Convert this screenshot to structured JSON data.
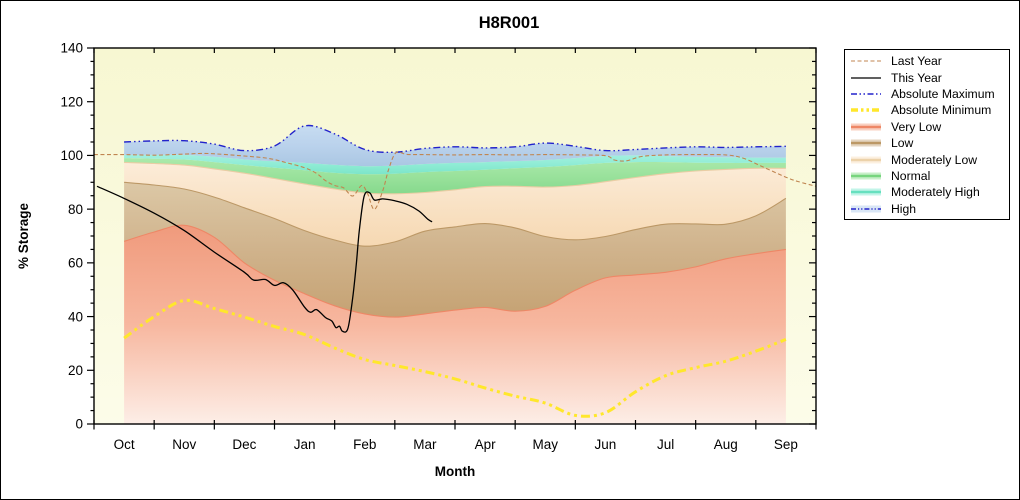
{
  "title_bar": {
    "note": "plain chart window, white background, black frame"
  },
  "chart_data": {
    "type": "area+line",
    "title": "H8R001",
    "xlabel": "Month",
    "ylabel": "% Storage",
    "x_categories": [
      "Oct",
      "Nov",
      "Dec",
      "Jan",
      "Feb",
      "Mar",
      "Apr",
      "May",
      "Jun",
      "Jul",
      "Aug",
      "Sep"
    ],
    "ylim": [
      0,
      140
    ],
    "y_major_step": 20,
    "y_minor_step": 5,
    "grid": "off",
    "legend_position": "outside-right",
    "plot_background": [
      "#f7f7d2",
      "#fcfce9"
    ],
    "sampling_note": "band and min/max series sampled at half-month steps, index 0 = mid-Oct through index 11 = mid-Sep; line series are [month_index,value] pairs, -0.5 = Oct 1, 11.5 = Sep 30",
    "bands": [
      {
        "name": "Very Low",
        "grad": [
          "#f09a7c",
          "#f7b79f",
          "#fdeee7"
        ],
        "edge_line": "#ee8766",
        "top": [
          68,
          71.5,
          74,
          69.5,
          60,
          53.5,
          48.5,
          44,
          41,
          39.8,
          41,
          42.4,
          43.4,
          42,
          43.8,
          49.8,
          54.4,
          55.5,
          56.5,
          58.5,
          61.5,
          63.4,
          65
        ]
      },
      {
        "name": "Low",
        "grad": [
          "#dcc8a6",
          "#d0b38c",
          "#c5a273"
        ],
        "edge_line": "#bc9866",
        "top": [
          90,
          89,
          87.5,
          84.5,
          80.5,
          76.5,
          72,
          68.5,
          66.2,
          67.8,
          71.8,
          73.4,
          74.6,
          73,
          69.8,
          68.6,
          69.8,
          72.4,
          74.4,
          74.5,
          74.4,
          77.5,
          84
        ]
      },
      {
        "name": "Moderately Low",
        "grad": [
          "#fcecd9",
          "#f9e2c5",
          "#f6d8b2"
        ],
        "edge_line": "#e9cda4",
        "top": [
          97.4,
          97,
          96.4,
          95,
          93.4,
          91.4,
          89.4,
          87.5,
          86,
          85.7,
          86.2,
          87.2,
          88.4,
          88.5,
          88.2,
          88.8,
          90.2,
          91.8,
          93.2,
          94.2,
          94.8,
          95.2,
          95.2
        ]
      },
      {
        "name": "Normal",
        "grad": [
          "#ace9ab",
          "#9ae29c",
          "#86d98d"
        ],
        "edge_line": null,
        "top": [
          99,
          98.8,
          98.5,
          97.5,
          96.4,
          95.4,
          94.5,
          93.5,
          93,
          93.2,
          93.8,
          94.2,
          94.7,
          95.2,
          95.7,
          96.4,
          97.2,
          97.5,
          97.5,
          97.3,
          97.2,
          97.2,
          97.2
        ]
      },
      {
        "name": "Moderately High",
        "grad": [
          "#a2f0e0",
          "#8fecd5",
          "#7ce5c9"
        ],
        "edge_line": null,
        "top": [
          100.2,
          100.2,
          100.2,
          99.5,
          98.5,
          97.8,
          97.2,
          96.5,
          96,
          96.2,
          96.8,
          97.2,
          97.5,
          97.9,
          98.3,
          99,
          99.8,
          100,
          99.8,
          99.5,
          99.3,
          99.2,
          99.2
        ]
      },
      {
        "name": "High",
        "grad": [
          "#c7dcf1",
          "#bad2ec",
          "#aac7e3"
        ],
        "edge_line": null,
        "top": [
          105,
          105.4,
          105.5,
          104.2,
          101.8,
          103.5,
          111,
          108,
          102.2,
          101.2,
          102.6,
          103.2,
          102.8,
          103.2,
          104.6,
          103.4,
          101.8,
          102.2,
          102.8,
          103.2,
          103,
          103.2,
          103.4
        ]
      }
    ],
    "lines": {
      "absolute_maximum": {
        "name": "Absolute Maximum",
        "color": "#2222cb",
        "width": 1.4,
        "dash": "7 3 1.5 3 1.5 3",
        "follows_band_top": "High"
      },
      "absolute_minimum": {
        "name": "Absolute Minimum",
        "color": "#ffe72b",
        "width": 3,
        "dash": "9 4 3 4 3 4",
        "values_half_month": [
          32,
          40,
          46,
          43,
          39.8,
          36.3,
          33.3,
          28.3,
          24,
          21.8,
          19.5,
          16.8,
          13.4,
          10.4,
          7.8,
          3.2,
          4.2,
          12,
          18,
          21,
          23.4,
          27.1,
          31.5
        ]
      },
      "last_year": {
        "name": "Last Year",
        "color": "#c08550",
        "width": 1.1,
        "dash": "4 2.5",
        "points": [
          [
            -0.5,
            100.3
          ],
          [
            0,
            100.3
          ],
          [
            0.5,
            100.1
          ],
          [
            1,
            100.5
          ],
          [
            1.4,
            100.7
          ],
          [
            2,
            99.8
          ],
          [
            2.4,
            98.9
          ],
          [
            2.7,
            97.3
          ],
          [
            3,
            95.4
          ],
          [
            3.2,
            93.3
          ],
          [
            3.35,
            90.6
          ],
          [
            3.5,
            88.8
          ],
          [
            3.65,
            87.9
          ],
          [
            3.8,
            84.9
          ],
          [
            3.95,
            88.8
          ],
          [
            4.05,
            85.6
          ],
          [
            4.16,
            79.9
          ],
          [
            4.3,
            86.9
          ],
          [
            4.4,
            95
          ],
          [
            4.52,
            101
          ],
          [
            4.7,
            100.4
          ],
          [
            5,
            100.3
          ],
          [
            5.5,
            100.2
          ],
          [
            6,
            100.3
          ],
          [
            6.5,
            100.2
          ],
          [
            7,
            100.3
          ],
          [
            7.5,
            100.2
          ],
          [
            8,
            99.9
          ],
          [
            8.15,
            98.3
          ],
          [
            8.35,
            98
          ],
          [
            8.6,
            99.6
          ],
          [
            9,
            100.2
          ],
          [
            9.5,
            100.3
          ],
          [
            10,
            100.2
          ],
          [
            10.3,
            98.9
          ],
          [
            10.6,
            95.9
          ],
          [
            11,
            91.9
          ],
          [
            11.2,
            90.3
          ],
          [
            11.5,
            88.5
          ]
        ]
      },
      "this_year": {
        "name": "This Year",
        "color": "#000000",
        "width": 1.3,
        "dash": "",
        "points": [
          [
            -0.45,
            88.5
          ],
          [
            0,
            84
          ],
          [
            0.5,
            78.5
          ],
          [
            1,
            72
          ],
          [
            1.5,
            64
          ],
          [
            2,
            56.5
          ],
          [
            2.15,
            53.6
          ],
          [
            2.35,
            53.8
          ],
          [
            2.5,
            51.6
          ],
          [
            2.65,
            52.6
          ],
          [
            2.8,
            50
          ],
          [
            3,
            43.5
          ],
          [
            3.1,
            41.6
          ],
          [
            3.2,
            42.6
          ],
          [
            3.35,
            39.6
          ],
          [
            3.45,
            38.4
          ],
          [
            3.52,
            35.9
          ],
          [
            3.58,
            36.4
          ],
          [
            3.63,
            34.5
          ],
          [
            3.72,
            35.6
          ],
          [
            3.8,
            47
          ],
          [
            3.86,
            59.5
          ],
          [
            3.91,
            72
          ],
          [
            3.99,
            84.8
          ],
          [
            4.08,
            86.1
          ],
          [
            4.16,
            83.4
          ],
          [
            4.3,
            83.8
          ],
          [
            4.5,
            83.1
          ],
          [
            4.7,
            81.8
          ],
          [
            4.9,
            79.3
          ],
          [
            5.05,
            76.2
          ],
          [
            5.12,
            75.3
          ]
        ]
      }
    }
  },
  "legend": {
    "items": [
      {
        "label": "Last Year",
        "type": "line",
        "color": "#c08550",
        "width": 1.1,
        "dash": "4 2.5"
      },
      {
        "label": "This Year",
        "type": "line",
        "color": "#000000",
        "width": 1.3,
        "dash": ""
      },
      {
        "label": "Absolute Maximum",
        "type": "line",
        "color": "#2222cb",
        "width": 1.4,
        "dash": "6 2.5 1.5 2.5 1.5 2.5"
      },
      {
        "label": "Absolute Minimum",
        "type": "line",
        "color": "#ffe72b",
        "width": 3.4,
        "dash": "7 3 2.5 3 2.5 3"
      },
      {
        "label": "Very Low",
        "type": "band",
        "fill": "#f4a98e",
        "line": "#ee8766"
      },
      {
        "label": "Low",
        "type": "band",
        "fill": "#d0b38c",
        "line": "#bc9866"
      },
      {
        "label": "Moderately Low",
        "type": "band",
        "fill": "#f9e3c7",
        "line": "#ecd2aa"
      },
      {
        "label": "Normal",
        "type": "band",
        "fill": "#9ae29c",
        "line": "#77d57e"
      },
      {
        "label": "Moderately High",
        "type": "band",
        "fill": "#90ebd5",
        "line": "#66e0bf"
      },
      {
        "label": "High",
        "type": "band",
        "fill": "#bad2ec",
        "line": "#2222cb",
        "dash": "5 2 1.2 2 1.2 2"
      }
    ]
  }
}
